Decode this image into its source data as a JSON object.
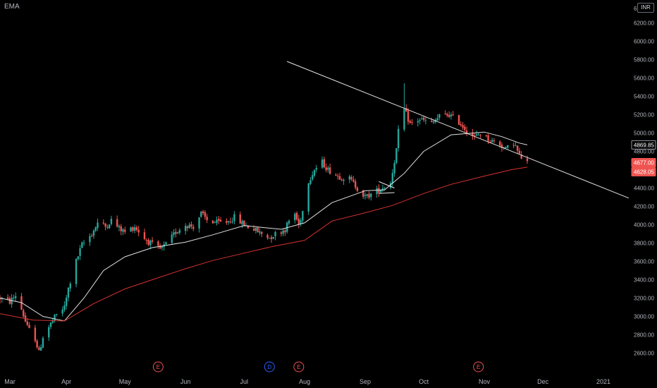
{
  "study_label": "EMA",
  "currency": "INR",
  "colors": {
    "background": "#000000",
    "up": "#26a69a",
    "down": "#ef5350",
    "ema_short": "#e0e0e0",
    "ema_long": "#d3332f",
    "trendline": "#e6e6e6",
    "axis_text": "#b2b5be",
    "last_price_bg": "#ef5350"
  },
  "chart_data": {
    "type": "candlestick",
    "title": "",
    "ylim": [
      2450,
      6450
    ],
    "x_range": [
      "2020-02-27",
      "2021-01-14"
    ],
    "y_ticks": [
      2600,
      2800,
      3000,
      3200,
      3400,
      3600,
      3800,
      4000,
      4200,
      4400,
      4600,
      4800,
      5000,
      5200,
      5400,
      5600,
      5800,
      6000,
      6200
    ],
    "y_tick_labels": [
      "2600.00",
      "2800.00",
      "3000.00",
      "3200.00",
      "3400.00",
      "3600.00",
      "3800.00",
      "4000.00",
      "4200.00",
      "4400.00",
      "4600.00",
      "4800.00",
      "5000.00",
      "5200.00",
      "5400.00",
      "5600.00",
      "5800.00",
      "6000.00",
      "6200.00"
    ],
    "top_tick_partial": "6",
    "x_ticks": [
      {
        "label": "Mar",
        "date": "2020-03-01"
      },
      {
        "label": "Apr",
        "date": "2020-04-01"
      },
      {
        "label": "May",
        "date": "2020-05-01"
      },
      {
        "label": "Jun",
        "date": "2020-06-01"
      },
      {
        "label": "Jul",
        "date": "2020-07-01"
      },
      {
        "label": "Aug",
        "date": "2020-08-01"
      },
      {
        "label": "Sep",
        "date": "2020-09-01"
      },
      {
        "label": "Oct",
        "date": "2020-10-01"
      },
      {
        "label": "Nov",
        "date": "2020-11-01"
      },
      {
        "label": "Dec",
        "date": "2020-12-01"
      },
      {
        "label": "2021",
        "date": "2021-01-01"
      }
    ],
    "price_path": [
      [
        "2020-02-27",
        3200
      ],
      [
        "2020-03-03",
        3160
      ],
      [
        "2020-03-06",
        3230
      ],
      [
        "2020-03-09",
        3080
      ],
      [
        "2020-03-12",
        2880
      ],
      [
        "2020-03-16",
        2760
      ],
      [
        "2020-03-18",
        2600
      ],
      [
        "2020-03-20",
        2780
      ],
      [
        "2020-03-24",
        2920
      ],
      [
        "2020-03-27",
        3020
      ],
      [
        "2020-03-31",
        3100
      ],
      [
        "2020-04-02",
        3300
      ],
      [
        "2020-04-06",
        3600
      ],
      [
        "2020-04-09",
        3780
      ],
      [
        "2020-04-14",
        3900
      ],
      [
        "2020-04-17",
        4020
      ],
      [
        "2020-04-21",
        3980
      ],
      [
        "2020-04-24",
        4050
      ],
      [
        "2020-04-28",
        3960
      ],
      [
        "2020-05-01",
        3920
      ],
      [
        "2020-05-06",
        3980
      ],
      [
        "2020-05-11",
        3850
      ],
      [
        "2020-05-15",
        3780
      ],
      [
        "2020-05-19",
        3730
      ],
      [
        "2020-05-22",
        3780
      ],
      [
        "2020-05-27",
        3920
      ],
      [
        "2020-06-01",
        4000
      ],
      [
        "2020-06-05",
        3980
      ],
      [
        "2020-06-09",
        4120
      ],
      [
        "2020-06-12",
        4050
      ],
      [
        "2020-06-17",
        4020
      ],
      [
        "2020-06-22",
        4030
      ],
      [
        "2020-06-26",
        4080
      ],
      [
        "2020-07-01",
        4000
      ],
      [
        "2020-07-06",
        3950
      ],
      [
        "2020-07-10",
        3900
      ],
      [
        "2020-07-14",
        3860
      ],
      [
        "2020-07-17",
        3900
      ],
      [
        "2020-07-22",
        3950
      ],
      [
        "2020-07-24",
        4040
      ],
      [
        "2020-07-27",
        4120
      ],
      [
        "2020-07-29",
        4000
      ],
      [
        "2020-07-31",
        4150
      ],
      [
        "2020-08-03",
        4480
      ],
      [
        "2020-08-06",
        4600
      ],
      [
        "2020-08-10",
        4680
      ],
      [
        "2020-08-13",
        4600
      ],
      [
        "2020-08-18",
        4530
      ],
      [
        "2020-08-24",
        4500
      ],
      [
        "2020-08-28",
        4400
      ],
      [
        "2020-09-01",
        4300
      ],
      [
        "2020-09-04",
        4330
      ],
      [
        "2020-09-08",
        4380
      ],
      [
        "2020-09-11",
        4420
      ],
      [
        "2020-09-14",
        4460
      ],
      [
        "2020-09-16",
        4700
      ],
      [
        "2020-09-17",
        4820
      ],
      [
        "2020-09-18",
        5010
      ],
      [
        "2020-09-21",
        5250
      ],
      [
        "2020-09-24",
        5100
      ],
      [
        "2020-09-29",
        5150
      ],
      [
        "2020-10-05",
        5100
      ],
      [
        "2020-10-09",
        5180
      ],
      [
        "2020-10-14",
        5200
      ],
      [
        "2020-10-19",
        5120
      ],
      [
        "2020-10-23",
        5030
      ],
      [
        "2020-10-27",
        4950
      ],
      [
        "2020-10-30",
        5000
      ],
      [
        "2020-11-04",
        4920
      ],
      [
        "2020-11-09",
        4880
      ],
      [
        "2020-11-12",
        4820
      ],
      [
        "2020-11-16",
        4900
      ],
      [
        "2020-11-19",
        4750
      ],
      [
        "2020-11-23",
        4677
      ]
    ],
    "series": [
      {
        "type": "line",
        "values": [
          [
            "2020-02-27",
            3200
          ],
          [
            "2020-03-09",
            3150
          ],
          [
            "2020-03-20",
            3000
          ],
          [
            "2020-03-31",
            2950
          ],
          [
            "2020-04-10",
            3200
          ],
          [
            "2020-04-20",
            3500
          ],
          [
            "2020-05-01",
            3650
          ],
          [
            "2020-05-15",
            3750
          ],
          [
            "2020-06-01",
            3810
          ],
          [
            "2020-06-15",
            3890
          ],
          [
            "2020-07-01",
            3990
          ],
          [
            "2020-07-20",
            3950
          ],
          [
            "2020-08-01",
            4020
          ],
          [
            "2020-08-15",
            4240
          ],
          [
            "2020-09-01",
            4370
          ],
          [
            "2020-09-11",
            4380
          ],
          [
            "2020-09-21",
            4560
          ],
          [
            "2020-10-01",
            4800
          ],
          [
            "2020-10-15",
            4980
          ],
          [
            "2020-11-01",
            5010
          ],
          [
            "2020-11-10",
            4960
          ],
          [
            "2020-11-19",
            4890
          ],
          [
            "2020-11-23",
            4869.85
          ]
        ]
      },
      {
        "type": "line",
        "values": [
          [
            "2020-02-27",
            3030
          ],
          [
            "2020-03-15",
            2960
          ],
          [
            "2020-03-31",
            2950
          ],
          [
            "2020-04-15",
            3140
          ],
          [
            "2020-05-01",
            3300
          ],
          [
            "2020-05-15",
            3400
          ],
          [
            "2020-06-01",
            3520
          ],
          [
            "2020-06-15",
            3610
          ],
          [
            "2020-07-01",
            3690
          ],
          [
            "2020-07-15",
            3760
          ],
          [
            "2020-08-01",
            3830
          ],
          [
            "2020-08-15",
            4040
          ],
          [
            "2020-09-01",
            4130
          ],
          [
            "2020-09-15",
            4210
          ],
          [
            "2020-10-01",
            4340
          ],
          [
            "2020-10-15",
            4440
          ],
          [
            "2020-11-01",
            4530
          ],
          [
            "2020-11-15",
            4600
          ],
          [
            "2020-11-23",
            4628.05
          ]
        ]
      }
    ],
    "trendlines": [
      {
        "from": [
          "2020-07-23",
          5780
        ],
        "to": [
          "2021-01-14",
          4290
        ]
      },
      {
        "from": [
          "2020-09-08",
          4470
        ],
        "to": [
          "2020-09-16",
          4400
        ]
      },
      {
        "from": [
          "2020-09-08",
          4340
        ],
        "to": [
          "2020-09-16",
          4350
        ]
      }
    ],
    "price_labels": [
      {
        "value": 4869.85,
        "label": "4869.85",
        "style": "outline"
      },
      {
        "value": 4677.0,
        "label": "4677.00",
        "style": "filled"
      },
      {
        "value": 4628.05,
        "label": "4628.05",
        "style": "filled"
      }
    ],
    "events": [
      {
        "date": "2020-05-18",
        "label": "E",
        "color": "#ef5350"
      },
      {
        "date": "2020-07-14",
        "label": "D",
        "color": "#2962ff"
      },
      {
        "date": "2020-07-29",
        "label": "E",
        "color": "#ef5350"
      },
      {
        "date": "2020-10-29",
        "label": "E",
        "color": "#ef5350"
      }
    ]
  }
}
